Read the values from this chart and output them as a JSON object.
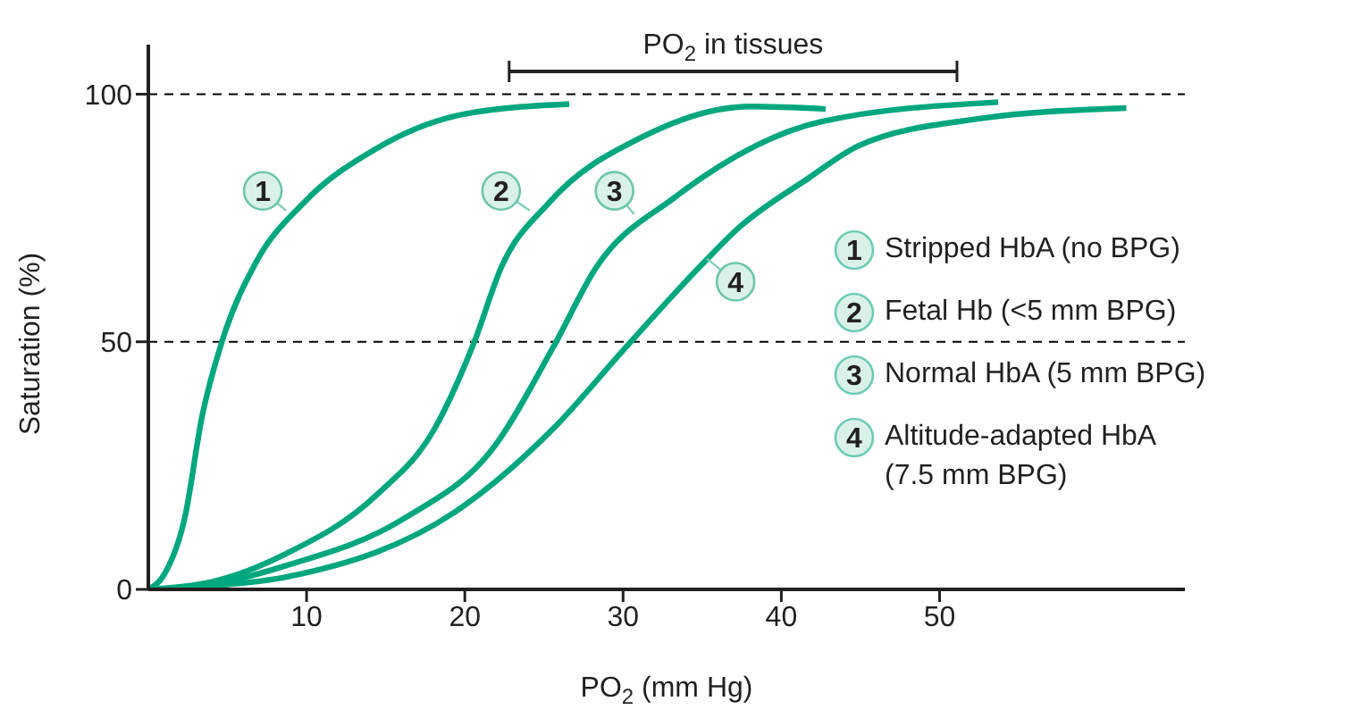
{
  "chart_data": {
    "type": "line",
    "xlabel": "PO$_{2}$ (mm Hg)",
    "ylabel": "Saturation (%)",
    "xlim": [
      0,
      65.5
    ],
    "xticks": [
      10,
      20,
      30,
      40,
      50
    ],
    "ylim": [
      0,
      110
    ],
    "yticks": [
      0,
      50,
      100
    ],
    "grid": false,
    "legend": "right",
    "marker": "none",
    "line_style": "solid",
    "series": [
      {
        "name": "Stripped HbA (no BPG)",
        "color": "#00a77e",
        "x": [
          0,
          1,
          2.3,
          3.4,
          4.7,
          6.8,
          9.8,
          14.4,
          20,
          26.6
        ],
        "values": [
          0,
          3,
          14.4,
          35,
          50.5,
          66,
          78,
          89,
          96,
          98
        ]
      },
      {
        "name": "Fetal Hb (<5 mm BPG)",
        "color": "#00a77e",
        "x": [
          0,
          4,
          8.7,
          14.4,
          18.1,
          20.6,
          22.3,
          25.3,
          31.3,
          38.1,
          42.8
        ],
        "values": [
          0,
          1.5,
          7.2,
          19,
          32.5,
          50,
          65,
          78,
          91.5,
          97.5,
          97
        ]
      },
      {
        "name": "Normal HbA (5 mm BPG)",
        "color": "#00a77e",
        "x": [
          0,
          4,
          8.7,
          16.2,
          21.9,
          25.6,
          28.3,
          33.2,
          42.6,
          53.7
        ],
        "values": [
          0,
          1,
          4.8,
          14.4,
          29,
          49,
          65,
          79,
          94.5,
          98.4
        ]
      },
      {
        "name": "Altitude-adapted HbA (7.5 mm BPG)",
        "color": "#00a77e",
        "x": [
          0,
          4,
          8.7,
          20,
          25.6,
          30.2,
          35.1,
          37.3,
          41.7,
          44.9,
          52.4,
          61.8
        ],
        "values": [
          0,
          0.7,
          2.5,
          17,
          32.5,
          49,
          66,
          73,
          83,
          89.6,
          95,
          97.2
        ]
      },
      {
        "color": "#222222",
        "x": [
          22.8,
          51.1
        ],
        "values": [
          104.6,
          104.6
        ]
      }
    ],
    "ref_lines": [
      {
        "axis": "y",
        "value": 100,
        "color": "#000000",
        "line_style": "dashed"
      },
      {
        "axis": "y",
        "value": 50,
        "color": "#000000",
        "line_style": "dashed"
      }
    ],
    "annotations": [
      {
        "text": "1",
        "x": 8.7,
        "y": 76.5
      },
      {
        "text": "2",
        "x": 24.1,
        "y": 76.5
      },
      {
        "text": "3",
        "x": 30.7,
        "y": 75.8
      },
      {
        "text": "4",
        "x": 35.3,
        "y": 66.8
      },
      {
        "text": "PO$_{2}$ in tissues",
        "x": 36.95,
        "y": 104.6
      }
    ]
  }
}
